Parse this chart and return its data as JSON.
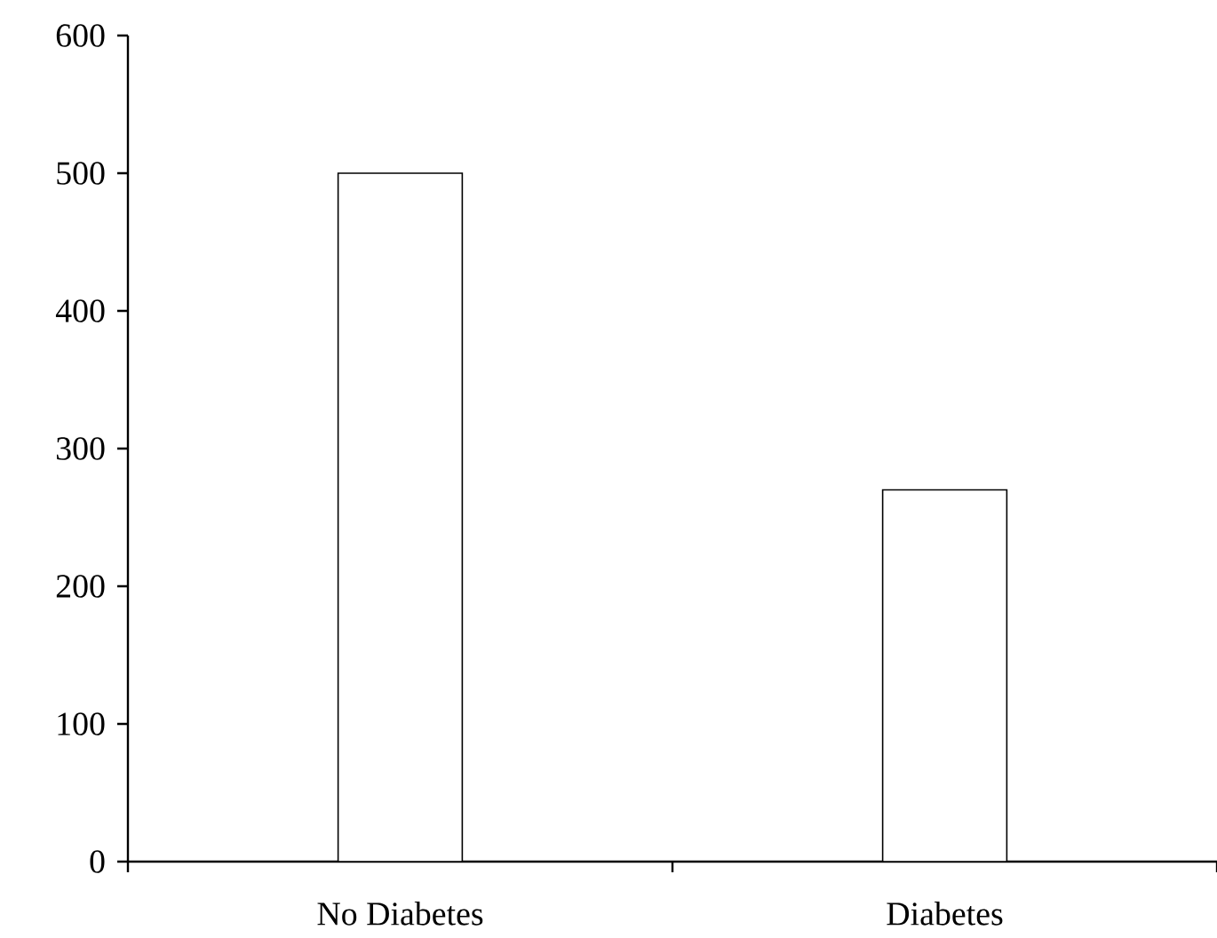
{
  "chart_data": {
    "type": "bar",
    "categories": [
      "No Diabetes",
      "Diabetes"
    ],
    "values": [
      500,
      270
    ],
    "color": "#ffffff",
    "ylim": [
      0,
      600
    ],
    "yticks": [
      0,
      100,
      200,
      300,
      400,
      500,
      600
    ]
  }
}
